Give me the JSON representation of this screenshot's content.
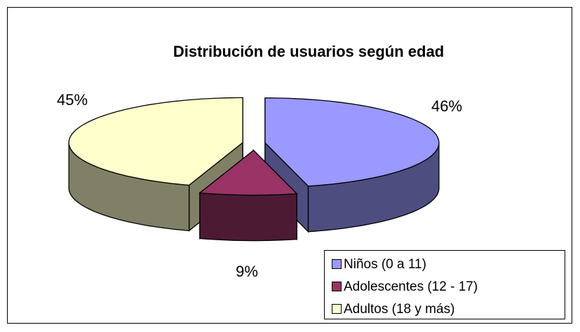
{
  "chart_data": {
    "type": "pie3d",
    "title": "Distribución de usuarios según edad",
    "categories": [
      "Niños (0 a 11)",
      "Adolescentes (12 - 17)",
      "Adultos (18 y más)"
    ],
    "values": [
      46,
      9,
      45
    ],
    "value_labels": [
      "46%",
      "9%",
      "45%"
    ],
    "colors": [
      "#9999ff",
      "#993366",
      "#ffffcc"
    ],
    "legend": "bottom-right"
  }
}
